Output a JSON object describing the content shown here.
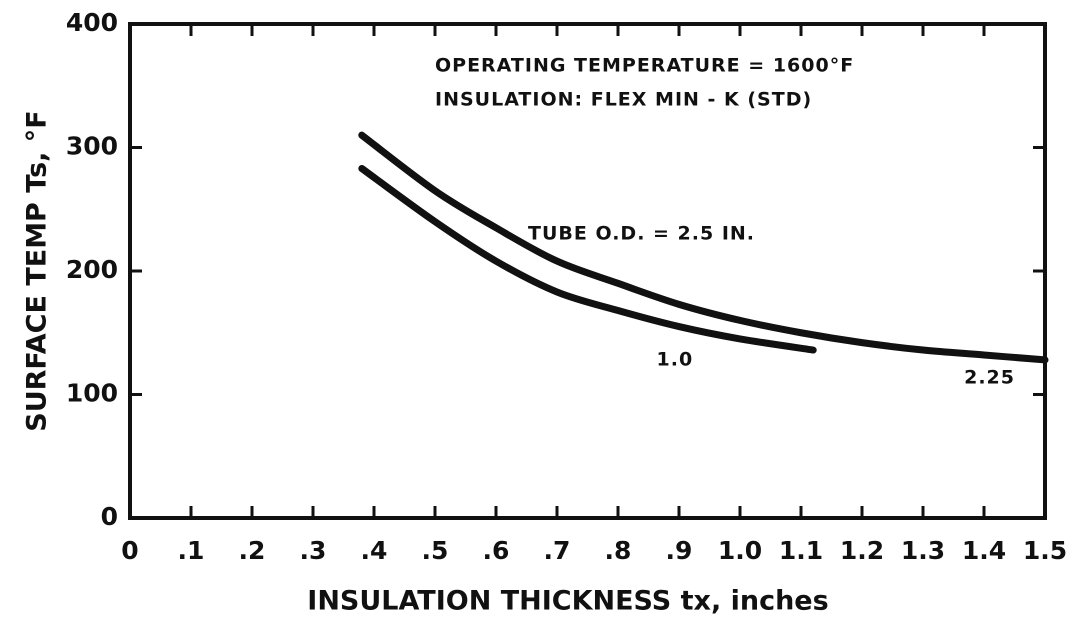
{
  "chart_data": {
    "type": "line",
    "xlabel": "INSULATION THICKNESS tx, inches",
    "ylabel": "SURFACE TEMP Ts, °F",
    "annotations": [
      "OPERATING TEMPERATURE = 1600°F",
      "INSULATION: FLEX MIN - K (STD)",
      "TUBE O.D. = 2.5 IN."
    ],
    "xlim": [
      0,
      1.5
    ],
    "ylim": [
      0,
      400
    ],
    "xticks": [
      0,
      {
        "value": 0.1,
        "label": ".1"
      },
      {
        "value": 0.2,
        "label": ".2"
      },
      {
        "value": 0.3,
        "label": ".3"
      },
      {
        "value": 0.4,
        "label": ".4"
      },
      {
        "value": 0.5,
        "label": ".5"
      },
      {
        "value": 0.6,
        "label": ".6"
      },
      {
        "value": 0.7,
        "label": ".7"
      },
      {
        "value": 0.8,
        "label": ".8"
      },
      {
        "value": 0.9,
        "label": ".9"
      },
      {
        "value": 1,
        "label": "1.0"
      },
      1.1,
      1.2,
      1.3,
      1.4,
      1.5
    ],
    "yticks": [
      0,
      100,
      200,
      300,
      400
    ],
    "series": [
      {
        "name": "2.25",
        "color": "#111111",
        "x": [
          0.38,
          0.5,
          0.6,
          0.7,
          0.8,
          0.9,
          1.0,
          1.1,
          1.2,
          1.3,
          1.4,
          1.5
        ],
        "values": [
          310,
          265,
          235,
          208,
          190,
          173,
          160,
          150,
          142,
          136,
          132,
          128
        ]
      },
      {
        "name": "1.0",
        "color": "#111111",
        "x": [
          0.38,
          0.5,
          0.6,
          0.7,
          0.8,
          0.9,
          1.0,
          1.12
        ],
        "values": [
          283,
          240,
          208,
          183,
          168,
          155,
          145,
          136
        ]
      }
    ]
  }
}
